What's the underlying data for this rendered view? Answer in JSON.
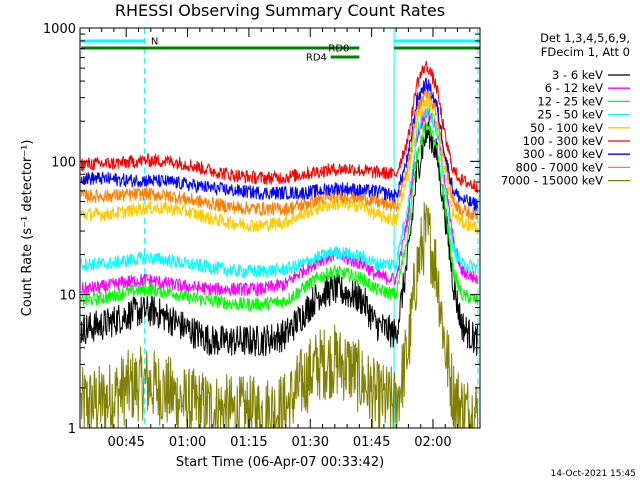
{
  "chart_data": {
    "type": "line",
    "title": "RHESSI Observing Summary Count Rates",
    "xlabel": "Start Time (06-Apr-07 00:33:42)",
    "ylabel": "Count Rate (s⁻¹ detector⁻¹)",
    "y_scale": "log",
    "ylim": [
      1,
      1000
    ],
    "y_ticks": [
      "1",
      "10",
      "100",
      "1000"
    ],
    "x_unit": "minutes",
    "xlim": [
      33.7,
      131.5
    ],
    "x_ticks": [
      {
        "value": 45,
        "label": "00:45"
      },
      {
        "value": 60,
        "label": "01:00"
      },
      {
        "value": 75,
        "label": "01:15"
      },
      {
        "value": 90,
        "label": "01:30"
      },
      {
        "value": 105,
        "label": "01:45"
      },
      {
        "value": 120,
        "label": "02:00"
      }
    ],
    "legend_header": [
      "Det 1,3,4,5,6,9,",
      "FDecim 1, Att 0"
    ],
    "legend_placement": "right, outside plot",
    "series": [
      {
        "name": "3 - 6 keV",
        "color": "#000000",
        "x": [
          34,
          40,
          45,
          48,
          52,
          56,
          60,
          66,
          72,
          78,
          84,
          88,
          92,
          96,
          100,
          103,
          106,
          111,
          114,
          116,
          118,
          119,
          121,
          123,
          125,
          127,
          129,
          131
        ],
        "y": [
          5.5,
          6,
          7,
          7.5,
          7.5,
          6.5,
          5.5,
          4.5,
          4.5,
          4.5,
          5,
          7,
          10,
          11,
          10,
          9,
          6,
          5,
          20,
          80,
          150,
          170,
          110,
          40,
          12,
          6,
          5,
          4.5
        ]
      },
      {
        "name": "6 - 12 keV",
        "color": "#ff00ff",
        "x": [
          34,
          40,
          45,
          50,
          56,
          60,
          66,
          72,
          78,
          84,
          88,
          92,
          96,
          100,
          103,
          106,
          111,
          114,
          116,
          118,
          119,
          121,
          123,
          125,
          127,
          129,
          131
        ],
        "y": [
          11,
          11.5,
          12.5,
          13,
          12,
          11.5,
          11,
          11,
          11,
          12,
          15,
          18,
          20,
          18,
          17,
          14,
          13,
          40,
          150,
          230,
          240,
          170,
          70,
          25,
          15,
          14,
          13
        ]
      },
      {
        "name": "12 - 25 keV",
        "color": "#00ff00",
        "x": [
          34,
          40,
          45,
          50,
          56,
          60,
          66,
          72,
          78,
          84,
          88,
          92,
          96,
          100,
          103,
          106,
          111,
          114,
          116,
          118,
          119,
          121,
          123,
          125,
          127,
          129,
          131
        ],
        "y": [
          9,
          9.5,
          10.5,
          11,
          10.5,
          9.5,
          9,
          8.5,
          8.5,
          9,
          11,
          13.5,
          15,
          14,
          13,
          11,
          10,
          30,
          110,
          180,
          190,
          120,
          45,
          15,
          10,
          9.5,
          9
        ]
      },
      {
        "name": "25 - 50 keV",
        "color": "#00ffff",
        "x": [
          34,
          40,
          45,
          50,
          56,
          60,
          66,
          72,
          78,
          84,
          88,
          92,
          96,
          100,
          103,
          106,
          111,
          114,
          116,
          118,
          119,
          121,
          123,
          125,
          127,
          129,
          131
        ],
        "y": [
          17,
          17,
          18,
          19,
          18,
          17,
          16,
          15,
          15,
          15.5,
          17,
          19,
          21,
          20,
          19,
          17,
          17,
          50,
          160,
          240,
          250,
          170,
          60,
          22,
          17,
          16.5,
          16
        ]
      },
      {
        "name": "50 - 100 keV",
        "color": "#ffcc00",
        "x": [
          34,
          40,
          45,
          50,
          56,
          60,
          66,
          72,
          78,
          84,
          88,
          92,
          96,
          100,
          103,
          106,
          111,
          114,
          116,
          118,
          119,
          121,
          123,
          125,
          127,
          129,
          131
        ],
        "y": [
          40,
          40,
          42,
          45,
          44,
          42,
          37,
          34,
          33,
          35,
          40,
          45,
          48,
          47,
          46,
          40,
          36,
          80,
          200,
          270,
          280,
          200,
          80,
          40,
          35,
          33,
          32
        ]
      },
      {
        "name": "100 - 300 keV",
        "color": "#ff0000",
        "x": [
          34,
          40,
          45,
          50,
          56,
          60,
          66,
          72,
          78,
          84,
          88,
          92,
          96,
          100,
          103,
          106,
          111,
          114,
          116,
          118,
          119,
          121,
          123,
          125,
          127,
          129,
          131
        ],
        "y": [
          95,
          96,
          98,
          102,
          100,
          95,
          85,
          78,
          75,
          76,
          80,
          84,
          87,
          88,
          85,
          83,
          80,
          150,
          380,
          520,
          500,
          350,
          150,
          85,
          72,
          68,
          65
        ]
      },
      {
        "name": "300 - 800 keV",
        "color": "#0000ff",
        "x": [
          34,
          40,
          45,
          50,
          56,
          60,
          66,
          72,
          78,
          84,
          88,
          92,
          96,
          100,
          103,
          106,
          111,
          114,
          116,
          118,
          119,
          121,
          123,
          125,
          127,
          129,
          131
        ],
        "y": [
          75,
          74,
          72,
          72,
          70,
          67,
          63,
          60,
          58,
          58,
          58,
          60,
          63,
          62,
          60,
          60,
          55,
          110,
          280,
          380,
          370,
          260,
          110,
          60,
          52,
          49,
          47
        ]
      },
      {
        "name": "800 - 7000 keV",
        "color": "#ff8000",
        "x": [
          34,
          40,
          45,
          50,
          56,
          60,
          66,
          72,
          78,
          84,
          88,
          92,
          96,
          100,
          103,
          106,
          111,
          114,
          116,
          118,
          119,
          121,
          123,
          125,
          127,
          129,
          131
        ],
        "y": [
          55,
          55,
          56,
          57,
          55,
          52,
          48,
          45,
          44,
          44,
          47,
          52,
          55,
          55,
          53,
          50,
          46,
          95,
          240,
          330,
          320,
          230,
          100,
          50,
          43,
          41,
          40
        ]
      },
      {
        "name": "7000 - 15000 keV",
        "color": "#808000",
        "x": [
          34,
          40,
          45,
          50,
          56,
          60,
          66,
          72,
          78,
          84,
          88,
          92,
          96,
          100,
          103,
          106,
          111,
          114,
          116,
          118,
          119,
          121,
          123,
          125,
          127,
          129,
          131
        ],
        "y": [
          1.5,
          1.6,
          2,
          2.2,
          1.8,
          1.5,
          1.4,
          1.3,
          1.3,
          1.4,
          2.2,
          3,
          3.2,
          2.8,
          2.2,
          1.7,
          1.5,
          4,
          15,
          28,
          27,
          15,
          4,
          1.8,
          1.4,
          1.3,
          1.3
        ]
      }
    ],
    "status_bars": [
      {
        "label": "N",
        "color": "#00ffff",
        "segments": [
          [
            34,
            49.5
          ],
          [
            110.5,
            131.5
          ]
        ]
      },
      {
        "label": "RD0",
        "color": "#008000",
        "segments": [
          [
            34,
            102
          ],
          [
            110.5,
            131.5
          ]
        ]
      },
      {
        "label": "RD4",
        "color": "#008000",
        "segments": [
          [
            95,
            102
          ]
        ]
      }
    ],
    "vertical_markers": [
      {
        "color": "#00ffff",
        "style": "dashed",
        "x": [
          49.5,
          131
        ]
      },
      {
        "color": "#00ffff",
        "style": "solid",
        "x": [
          110.5
        ]
      }
    ],
    "grid": false
  },
  "footer": {
    "timestamp": "14-Oct-2021 15:45"
  }
}
